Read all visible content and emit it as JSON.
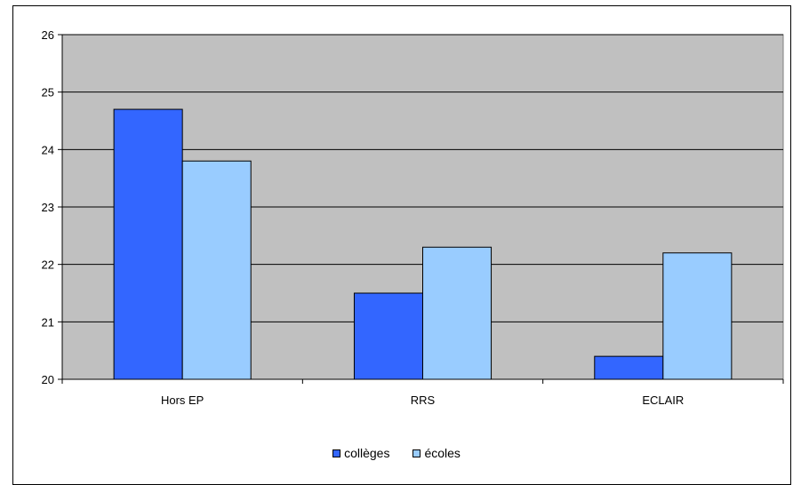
{
  "chart_data": {
    "type": "bar",
    "categories": [
      "Hors EP",
      "RRS",
      "ECLAIR"
    ],
    "series": [
      {
        "name": "collèges",
        "values": [
          24.7,
          21.5,
          20.4
        ],
        "color": "#3366ff"
      },
      {
        "name": "écoles",
        "values": [
          23.8,
          22.3,
          22.2
        ],
        "color": "#99ccff"
      }
    ],
    "ylim": [
      20,
      26
    ],
    "yticks": [
      "20",
      "21",
      "22",
      "23",
      "24",
      "25",
      "26"
    ],
    "grid": true,
    "plot_background": "#c0c0c0",
    "legend_position": "bottom"
  }
}
